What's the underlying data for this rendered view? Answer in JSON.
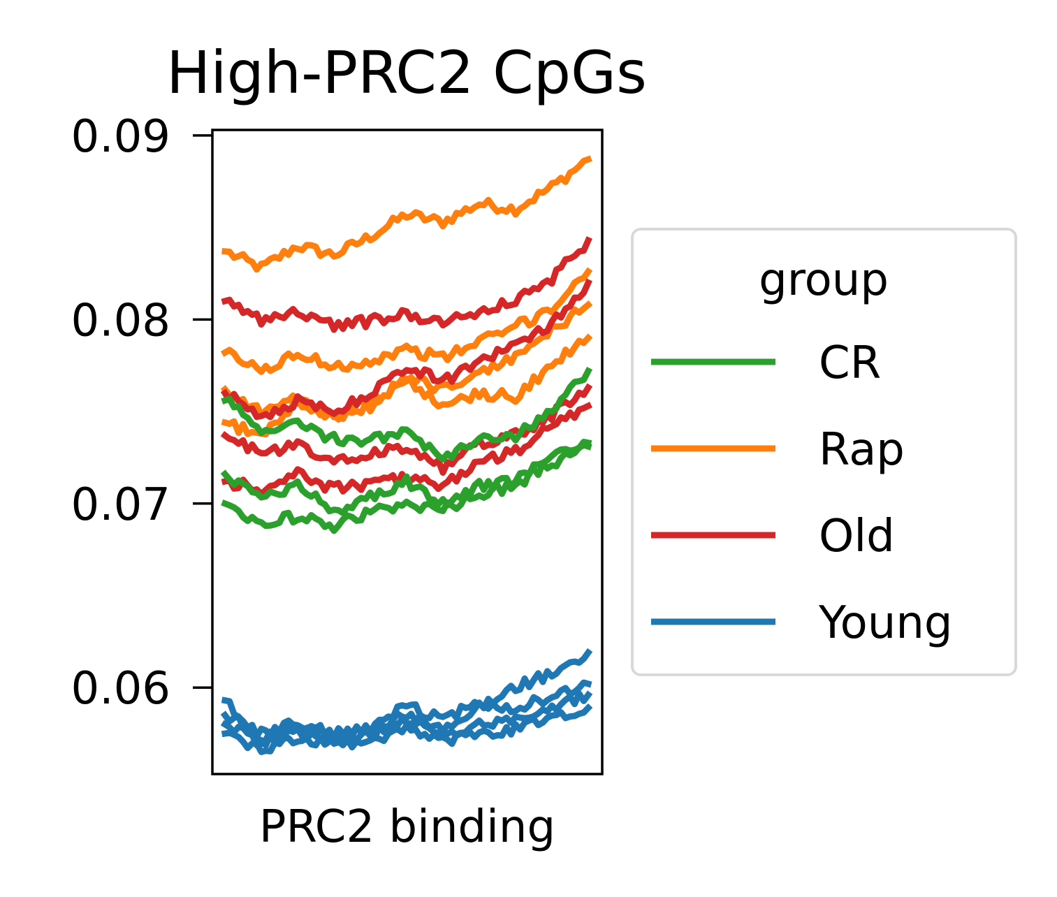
{
  "chart_data": {
    "type": "line",
    "title": "High-PRC2 CpGs",
    "xlabel": "PRC2 binding",
    "ylabel": "",
    "ylim": [
      0.0553,
      0.0903
    ],
    "yticks": [
      {
        "value": 0.06,
        "label": "0.06"
      },
      {
        "value": 0.07,
        "label": "0.07"
      },
      {
        "value": 0.08,
        "label": "0.08"
      },
      {
        "value": 0.09,
        "label": "0.09"
      }
    ],
    "grid": false,
    "legend": {
      "title": "group",
      "placement": "right, outside plot",
      "entries": [
        {
          "label": "CR",
          "color": "#2ca02c"
        },
        {
          "label": "Rap",
          "color": "#ff7f0e"
        },
        {
          "label": "Old",
          "color": "#d62728"
        },
        {
          "label": "Young",
          "color": "#1f77b4"
        }
      ]
    },
    "x": [
      0,
      1,
      2,
      3,
      4,
      5,
      6,
      7,
      8,
      9,
      10
    ],
    "series": [
      {
        "group": "Rap",
        "color": "#ff7f0e",
        "values": [
          0.0837,
          0.0828,
          0.084,
          0.0835,
          0.0845,
          0.0857,
          0.0853,
          0.0863,
          0.086,
          0.0872,
          0.0887
        ]
      },
      {
        "group": "Rap",
        "color": "#ff7f0e",
        "values": [
          0.0782,
          0.0772,
          0.0781,
          0.0775,
          0.0777,
          0.0784,
          0.0779,
          0.0788,
          0.0796,
          0.0806,
          0.0826
        ]
      },
      {
        "group": "Rap",
        "color": "#ff7f0e",
        "values": [
          0.0762,
          0.075,
          0.0757,
          0.0746,
          0.0755,
          0.0769,
          0.0762,
          0.077,
          0.078,
          0.0794,
          0.0808
        ]
      },
      {
        "group": "Rap",
        "color": "#ff7f0e",
        "values": [
          0.0744,
          0.0737,
          0.0755,
          0.0747,
          0.0752,
          0.0768,
          0.0752,
          0.076,
          0.0758,
          0.0775,
          0.079
        ]
      },
      {
        "group": "Old",
        "color": "#d62728",
        "values": [
          0.081,
          0.08,
          0.0804,
          0.0797,
          0.0799,
          0.0803,
          0.0799,
          0.0804,
          0.081,
          0.0822,
          0.0843
        ]
      },
      {
        "group": "Old",
        "color": "#d62728",
        "values": [
          0.076,
          0.0747,
          0.0756,
          0.0749,
          0.076,
          0.0775,
          0.0766,
          0.0778,
          0.0786,
          0.0798,
          0.082
        ]
      },
      {
        "group": "Old",
        "color": "#d62728",
        "values": [
          0.0737,
          0.0727,
          0.0732,
          0.0722,
          0.0727,
          0.0731,
          0.0719,
          0.0733,
          0.0737,
          0.0748,
          0.0763
        ]
      },
      {
        "group": "Old",
        "color": "#d62728",
        "values": [
          0.0712,
          0.0708,
          0.0716,
          0.0708,
          0.0711,
          0.0714,
          0.071,
          0.0722,
          0.0728,
          0.0742,
          0.0753
        ]
      },
      {
        "group": "CR",
        "color": "#2ca02c",
        "values": [
          0.0756,
          0.074,
          0.0743,
          0.0735,
          0.0734,
          0.074,
          0.0723,
          0.0735,
          0.0736,
          0.0752,
          0.0772
        ]
      },
      {
        "group": "CR",
        "color": "#2ca02c",
        "values": [
          0.0716,
          0.0703,
          0.071,
          0.0695,
          0.0703,
          0.0712,
          0.07,
          0.071,
          0.0712,
          0.0728,
          0.0733
        ]
      },
      {
        "group": "CR",
        "color": "#2ca02c",
        "values": [
          0.07,
          0.0689,
          0.0693,
          0.0688,
          0.0695,
          0.07,
          0.0697,
          0.0705,
          0.071,
          0.0722,
          0.0731
        ]
      },
      {
        "group": "Young",
        "color": "#1f77b4",
        "values": [
          0.0593,
          0.0572,
          0.0578,
          0.0574,
          0.0578,
          0.0585,
          0.0578,
          0.059,
          0.06,
          0.0608,
          0.0619
        ]
      },
      {
        "group": "Young",
        "color": "#1f77b4",
        "values": [
          0.0585,
          0.0575,
          0.0581,
          0.0575,
          0.0577,
          0.059,
          0.0583,
          0.0592,
          0.0588,
          0.0596,
          0.0602
        ]
      },
      {
        "group": "Young",
        "color": "#1f77b4",
        "values": [
          0.058,
          0.057,
          0.0576,
          0.0572,
          0.0574,
          0.0582,
          0.0575,
          0.058,
          0.0583,
          0.059,
          0.0596
        ]
      },
      {
        "group": "Young",
        "color": "#1f77b4",
        "values": [
          0.0575,
          0.0567,
          0.0572,
          0.0569,
          0.057,
          0.0577,
          0.0571,
          0.0574,
          0.0577,
          0.0583,
          0.0589
        ]
      }
    ]
  }
}
